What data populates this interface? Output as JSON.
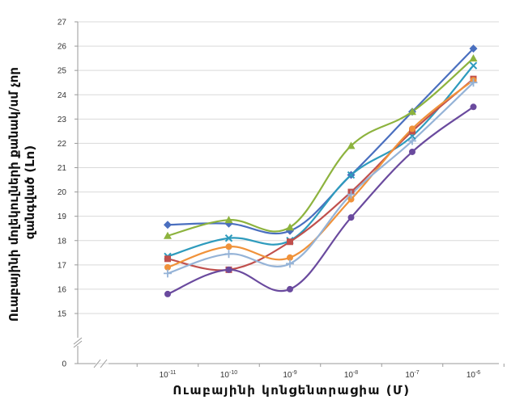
{
  "chart_data": {
    "type": "line",
    "xlabel": "Ուաբայինի կոնցենտրացիա (Մ)",
    "ylabel_lines": [
      "Ուաբայինի մոլեկուլների քանակ/սմ չոր",
      "զանգված (Ln)"
    ],
    "x": [
      "10-11",
      "10-10",
      "10-9",
      "10-8",
      "10-7",
      "10-6"
    ],
    "x_ticks": [
      {
        "base": "10",
        "exp": "-11"
      },
      {
        "base": "10",
        "exp": "-10"
      },
      {
        "base": "10",
        "exp": "-9"
      },
      {
        "base": "10",
        "exp": "-8"
      },
      {
        "base": "10",
        "exp": "-7"
      },
      {
        "base": "10",
        "exp": "-6"
      }
    ],
    "y_ticks": [
      "15",
      "16",
      "17",
      "18",
      "19",
      "20",
      "21",
      "22",
      "23",
      "24",
      "25",
      "26",
      "27"
    ],
    "y_zero_label": "0",
    "ylim": [
      15,
      27
    ],
    "y_axis_break": true,
    "grid": true,
    "series": [
      {
        "color": "#4a6fbf",
        "marker": "diamond",
        "values": [
          18.65,
          18.7,
          18.4,
          20.7,
          23.3,
          25.9
        ]
      },
      {
        "color": "#8db33e",
        "marker": "triangle",
        "values": [
          18.2,
          18.85,
          18.55,
          21.9,
          23.3,
          25.5
        ]
      },
      {
        "color": "#2e9bbd",
        "marker": "cross",
        "values": [
          17.35,
          18.1,
          18.0,
          20.7,
          22.3,
          25.2
        ]
      },
      {
        "color": "#c0504d",
        "marker": "square",
        "values": [
          17.25,
          16.8,
          17.95,
          20.0,
          22.5,
          24.65
        ]
      },
      {
        "color": "#f0923a",
        "marker": "circle",
        "values": [
          16.9,
          17.75,
          17.3,
          19.7,
          22.6,
          24.6
        ]
      },
      {
        "color": "#95b3d7",
        "marker": "plus",
        "values": [
          16.65,
          17.45,
          17.05,
          19.9,
          22.1,
          24.5
        ]
      },
      {
        "color": "#6a4a9e",
        "marker": "circle",
        "values": [
          15.8,
          16.8,
          16.0,
          18.95,
          21.65,
          23.5
        ]
      }
    ]
  }
}
